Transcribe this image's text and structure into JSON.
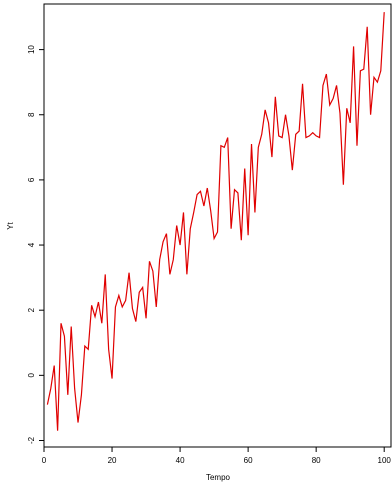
{
  "chart_data": {
    "type": "line",
    "xlabel": "Tempo",
    "ylabel": "Yt",
    "xlim": [
      0,
      102
    ],
    "ylim": [
      -2.2,
      11.4
    ],
    "x_ticks": [
      0,
      20,
      40,
      60,
      80,
      100
    ],
    "y_ticks": [
      -2,
      0,
      2,
      4,
      6,
      8,
      10
    ],
    "line_color": "#e00000",
    "grid": false,
    "legend": "none",
    "series": [
      {
        "x": [
          1,
          2,
          3,
          4,
          5,
          6,
          7,
          8,
          9,
          10,
          11,
          12,
          13,
          14,
          15,
          16,
          17,
          18,
          19,
          20,
          21,
          22,
          23,
          24,
          25,
          26,
          27,
          28,
          29,
          30,
          31,
          32,
          33,
          34,
          35,
          36,
          37,
          38,
          39,
          40,
          41,
          42,
          43,
          44,
          45,
          46,
          47,
          48,
          49,
          50,
          51,
          52,
          53,
          54,
          55,
          56,
          57,
          58,
          59,
          60,
          61,
          62,
          63,
          64,
          65,
          66,
          67,
          68,
          69,
          70,
          71,
          72,
          73,
          74,
          75,
          76,
          77,
          78,
          79,
          80,
          81,
          82,
          83,
          84,
          85,
          86,
          87,
          88,
          89,
          90,
          91,
          92,
          93,
          94,
          95,
          96,
          97,
          98,
          99,
          100
        ],
        "values": [
          -0.9,
          -0.4,
          0.3,
          -1.7,
          1.6,
          1.2,
          -0.6,
          1.5,
          -0.4,
          -1.45,
          -0.6,
          0.9,
          0.8,
          2.15,
          1.8,
          2.25,
          1.6,
          3.1,
          0.8,
          -0.1,
          2.1,
          2.45,
          2.1,
          2.3,
          3.15,
          2.05,
          1.65,
          2.55,
          2.7,
          1.75,
          3.5,
          3.2,
          2.1,
          3.55,
          4.1,
          4.35,
          3.1,
          3.55,
          4.6,
          4.0,
          5.0,
          3.1,
          4.5,
          5.0,
          5.55,
          5.65,
          5.2,
          5.75,
          5.05,
          4.2,
          4.4,
          7.05,
          7.0,
          7.3,
          4.5,
          5.7,
          5.6,
          4.15,
          6.35,
          4.3,
          7.1,
          5.0,
          7.0,
          7.4,
          8.15,
          7.75,
          6.7,
          8.55,
          7.35,
          7.3,
          8.0,
          7.35,
          6.3,
          7.4,
          7.5,
          8.95,
          7.3,
          7.35,
          7.45,
          7.35,
          7.3,
          8.9,
          9.25,
          8.3,
          8.5,
          8.9,
          8.05,
          5.85,
          8.2,
          7.75,
          10.1,
          7.05,
          9.35,
          9.4,
          10.7,
          8.0,
          9.15,
          9.0,
          9.35,
          11.15
        ]
      }
    ]
  }
}
